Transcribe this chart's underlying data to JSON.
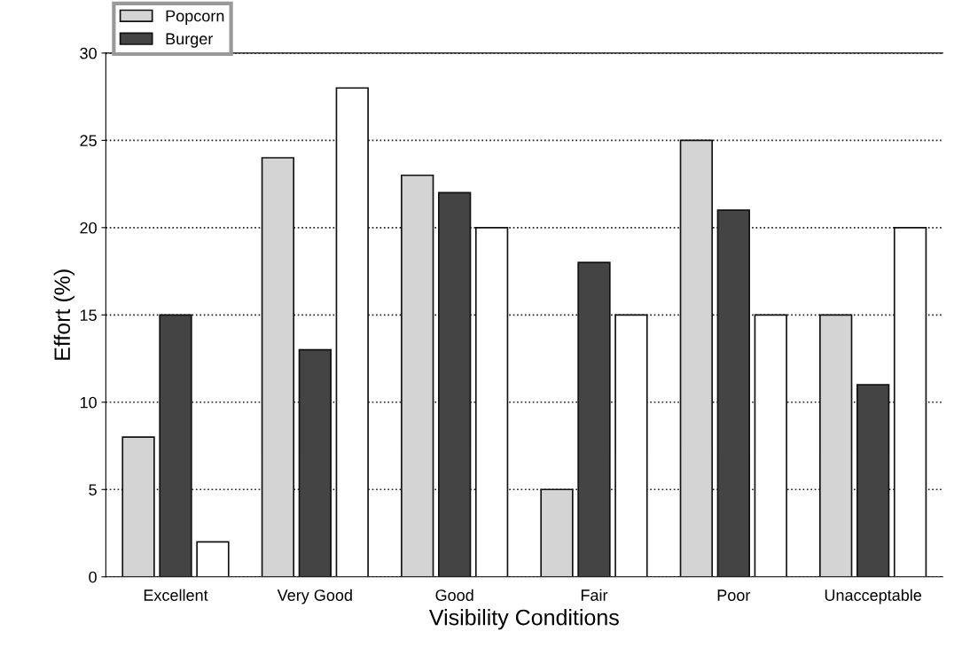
{
  "chart_data": {
    "type": "bar",
    "xlabel": "Visibility Conditions",
    "ylabel": "Effort (%)",
    "categories": [
      "Excellent",
      "Very Good",
      "Good",
      "Fair",
      "Poor",
      "Unacceptable"
    ],
    "series": [
      {
        "name": "Popcorn",
        "color": "#d4d4d4",
        "values": [
          8,
          24,
          23,
          5,
          25,
          15
        ]
      },
      {
        "name": "Burger",
        "color": "#444444",
        "values": [
          15,
          13,
          22,
          18,
          21,
          11
        ]
      },
      {
        "color": "#ffffff",
        "values": [
          2,
          28,
          20,
          15,
          15,
          20
        ]
      }
    ],
    "ylim": [
      0,
      30
    ],
    "yticks": [
      0,
      5,
      10,
      15,
      20,
      25,
      30
    ],
    "grid": "y",
    "legend": "top left"
  }
}
